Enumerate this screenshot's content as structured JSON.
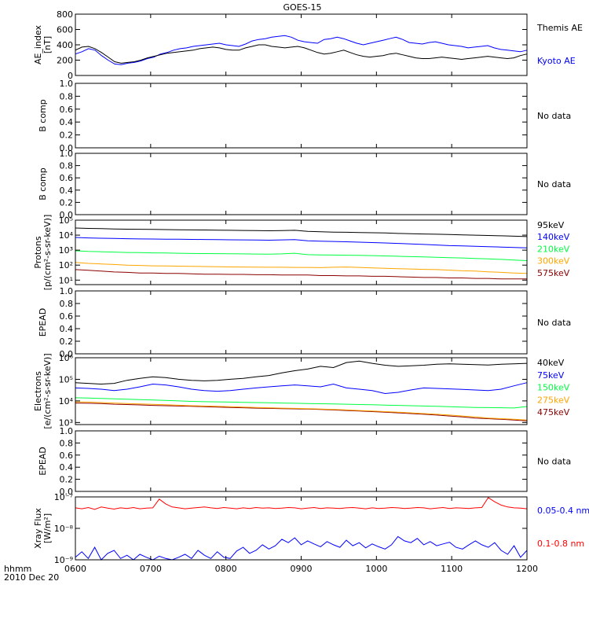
{
  "title": "GOES-15",
  "x_axis": {
    "ticks": [
      "0600",
      "0700",
      "0800",
      "0900",
      "1000",
      "1100",
      "1200"
    ],
    "corner_label_1": "hhmm",
    "corner_label_2": "2010 Dec 20"
  },
  "chart_data": [
    {
      "id": "ae",
      "type": "line",
      "ylabel": [
        "AE_index",
        "[nT]"
      ],
      "ylim": [
        0,
        800
      ],
      "yticks": [
        "0",
        "200",
        "400",
        "600",
        "800"
      ],
      "x_range_hhmm": [
        "0600",
        "1200"
      ],
      "series": [
        {
          "name": "Kyoto AE",
          "color": "#0000ff",
          "values": [
            280,
            310,
            350,
            330,
            260,
            200,
            150,
            140,
            160,
            170,
            190,
            220,
            240,
            280,
            300,
            330,
            350,
            360,
            380,
            390,
            400,
            410,
            420,
            400,
            390,
            380,
            410,
            450,
            470,
            480,
            500,
            510,
            520,
            500,
            460,
            440,
            430,
            420,
            470,
            480,
            500,
            480,
            450,
            420,
            400,
            420,
            440,
            460,
            480,
            500,
            470,
            430,
            420,
            410,
            430,
            440,
            420,
            400,
            390,
            380,
            360,
            370,
            380,
            390,
            360,
            340,
            330,
            320,
            310,
            330
          ]
        },
        {
          "name": "Themis AE",
          "color": "#000000",
          "values": [
            330,
            370,
            380,
            350,
            300,
            240,
            180,
            160,
            170,
            180,
            200,
            230,
            250,
            270,
            290,
            300,
            310,
            320,
            330,
            350,
            360,
            370,
            360,
            340,
            330,
            330,
            360,
            380,
            400,
            400,
            380,
            370,
            360,
            370,
            380,
            360,
            330,
            300,
            280,
            290,
            310,
            330,
            300,
            270,
            250,
            240,
            250,
            260,
            280,
            290,
            270,
            250,
            230,
            220,
            220,
            230,
            240,
            230,
            220,
            210,
            220,
            230,
            240,
            250,
            240,
            230,
            220,
            230,
            260,
            280
          ]
        }
      ]
    },
    {
      "id": "b1",
      "type": "line",
      "ylabel": [
        "B comp"
      ],
      "ylim": [
        0,
        1
      ],
      "yticks": [
        "0.0",
        "0.2",
        "0.4",
        "0.6",
        "0.8",
        "1.0"
      ],
      "status": "No data",
      "series": []
    },
    {
      "id": "b2",
      "type": "line",
      "ylabel": [
        "B comp"
      ],
      "ylim": [
        0,
        1
      ],
      "yticks": [
        "0.0",
        "0.2",
        "0.4",
        "0.6",
        "0.8",
        "1.0"
      ],
      "status": "No data",
      "series": []
    },
    {
      "id": "protons",
      "type": "line",
      "log_scale": true,
      "ylabel": [
        "Protons",
        "[p/(cm²-s-sr-keV)]"
      ],
      "ylim": [
        5,
        100000
      ],
      "yticks": [
        "10¹",
        "10²",
        "10³",
        "10⁴",
        "10⁵"
      ],
      "series": [
        {
          "name": "575keV",
          "color": "#8b0000",
          "values": [
            50,
            45,
            40,
            35,
            33,
            30,
            30,
            28,
            28,
            26,
            25,
            25,
            24,
            24,
            23,
            23,
            22,
            22,
            22,
            20,
            20,
            19,
            19,
            18,
            18,
            17,
            16,
            15,
            15,
            14,
            14,
            13,
            13,
            12,
            12,
            12
          ]
        },
        {
          "name": "300keV",
          "color": "#ffa500",
          "values": [
            150,
            130,
            120,
            110,
            100,
            95,
            90,
            88,
            85,
            82,
            80,
            78,
            76,
            75,
            74,
            72,
            72,
            70,
            70,
            68,
            72,
            75,
            70,
            65,
            62,
            58,
            55,
            52,
            50,
            46,
            42,
            40,
            36,
            33,
            30,
            28
          ]
        },
        {
          "name": "210keV",
          "color": "#00ff40",
          "values": [
            900,
            820,
            780,
            740,
            700,
            680,
            660,
            640,
            620,
            600,
            590,
            580,
            570,
            560,
            550,
            540,
            560,
            620,
            500,
            480,
            470,
            460,
            450,
            430,
            410,
            390,
            370,
            350,
            330,
            310,
            300,
            280,
            260,
            240,
            220,
            200
          ]
        },
        {
          "name": "140keV",
          "color": "#0000ff",
          "values": [
            7000,
            6500,
            6200,
            6000,
            5800,
            5600,
            5500,
            5400,
            5300,
            5200,
            5100,
            5000,
            4900,
            4800,
            4700,
            4600,
            4800,
            5000,
            4200,
            4000,
            3800,
            3600,
            3400,
            3200,
            3000,
            2800,
            2600,
            2400,
            2200,
            2000,
            1900,
            1800,
            1700,
            1600,
            1500,
            1400
          ]
        },
        {
          "name": "95keV",
          "color": "#000000",
          "values": [
            30000,
            28000,
            27000,
            26000,
            25000,
            24500,
            24000,
            23500,
            23000,
            22500,
            22000,
            21500,
            21000,
            20500,
            20000,
            19500,
            20000,
            21000,
            18000,
            17000,
            16000,
            15500,
            15000,
            14500,
            14000,
            13000,
            12500,
            12000,
            11500,
            11000,
            10500,
            10000,
            9500,
            9000,
            8500,
            8000
          ]
        }
      ]
    },
    {
      "id": "epead1",
      "type": "line",
      "ylabel": [
        "EPEAD"
      ],
      "ylim": [
        0,
        1
      ],
      "yticks": [
        "0.0",
        "0.2",
        "0.4",
        "0.6",
        "0.8",
        "1.0"
      ],
      "status": "No data",
      "series": []
    },
    {
      "id": "electrons",
      "type": "line",
      "log_scale": true,
      "ylabel": [
        "Electrons",
        "[e/(cm²-s-sr-keV)]"
      ],
      "ylim": [
        800,
        1000000
      ],
      "yticks": [
        "10³",
        "10⁴",
        "10⁵",
        "10⁶"
      ],
      "series": [
        {
          "name": "475keV",
          "color": "#8b0000",
          "values": [
            8000,
            7800,
            7500,
            7000,
            6800,
            6500,
            6200,
            6000,
            5800,
            5600,
            5400,
            5200,
            5000,
            4800,
            4600,
            4500,
            4400,
            4300,
            4200,
            4000,
            3800,
            3600,
            3400,
            3200,
            3000,
            2800,
            2600,
            2400,
            2200,
            2000,
            1800,
            1600,
            1500,
            1400,
            1300,
            1200
          ]
        },
        {
          "name": "275keV",
          "color": "#ffa500",
          "values": [
            9000,
            8800,
            8400,
            8000,
            7600,
            7200,
            6900,
            6600,
            6300,
            6000,
            5800,
            5600,
            5400,
            5200,
            5000,
            4800,
            4600,
            4500,
            4400,
            4200,
            4000,
            3800,
            3600,
            3400,
            3200,
            3000,
            2800,
            2600,
            2400,
            2200,
            2000,
            1800,
            1600,
            1500,
            1400,
            1300
          ]
        },
        {
          "name": "150keV",
          "color": "#00ff40",
          "values": [
            14000,
            13500,
            13000,
            12500,
            12000,
            11500,
            11000,
            10500,
            10000,
            9500,
            9200,
            9000,
            8800,
            8600,
            8400,
            8200,
            8000,
            7800,
            7600,
            7400,
            7200,
            7000,
            6800,
            6600,
            6400,
            6200,
            6000,
            5800,
            5600,
            5400,
            5200,
            5000,
            4900,
            4800,
            4700,
            5500
          ]
        },
        {
          "name": "75keV",
          "color": "#0000ff",
          "values": [
            40000,
            38000,
            35000,
            30000,
            35000,
            45000,
            60000,
            55000,
            45000,
            35000,
            30000,
            28000,
            30000,
            35000,
            40000,
            45000,
            50000,
            55000,
            50000,
            45000,
            60000,
            40000,
            35000,
            30000,
            22000,
            25000,
            32000,
            40000,
            38000,
            36000,
            34000,
            32000,
            30000,
            35000,
            50000,
            70000
          ]
        },
        {
          "name": "40keV",
          "color": "#000000",
          "values": [
            70000,
            65000,
            60000,
            65000,
            90000,
            110000,
            130000,
            120000,
            100000,
            90000,
            85000,
            90000,
            100000,
            110000,
            130000,
            150000,
            200000,
            250000,
            300000,
            400000,
            350000,
            600000,
            700000,
            550000,
            450000,
            400000,
            420000,
            450000,
            500000,
            520000,
            500000,
            480000,
            460000,
            500000,
            520000,
            550000
          ]
        }
      ]
    },
    {
      "id": "epead2",
      "type": "line",
      "ylabel": [
        "EPEAD"
      ],
      "ylim": [
        0,
        1
      ],
      "yticks": [
        "0.0",
        "0.2",
        "0.4",
        "0.6",
        "0.8",
        "1.0"
      ],
      "status": "No data",
      "series": []
    },
    {
      "id": "xray",
      "type": "line",
      "log_scale": true,
      "ylabel": [
        "Xray Flux",
        "[W/m²]"
      ],
      "ylim": [
        1e-09,
        1e-07
      ],
      "yticks": [
        "10⁻⁹",
        "10⁻⁸",
        "10⁻⁷"
      ],
      "series": [
        {
          "name": "0.1-0.8 nm",
          "color": "#ff0000",
          "values": [
            4.5e-08,
            4.2e-08,
            4.6e-08,
            4e-08,
            4.8e-08,
            4.4e-08,
            4.1e-08,
            4.5e-08,
            4.3e-08,
            4.6e-08,
            4.2e-08,
            4.4e-08,
            4.5e-08,
            8.5e-08,
            6e-08,
            4.8e-08,
            4.5e-08,
            4.2e-08,
            4.4e-08,
            4.6e-08,
            4.8e-08,
            4.5e-08,
            4.3e-08,
            4.6e-08,
            4.4e-08,
            4.2e-08,
            4.5e-08,
            4.3e-08,
            4.6e-08,
            4.4e-08,
            4.5e-08,
            4.3e-08,
            4.4e-08,
            4.6e-08,
            4.5e-08,
            4.2e-08,
            4.4e-08,
            4.6e-08,
            4.3e-08,
            4.5e-08,
            4.4e-08,
            4.3e-08,
            4.5e-08,
            4.6e-08,
            4.4e-08,
            4.2e-08,
            4.5e-08,
            4.3e-08,
            4.4e-08,
            4.6e-08,
            4.5e-08,
            4.3e-08,
            4.4e-08,
            4.6e-08,
            4.5e-08,
            4.2e-08,
            4.4e-08,
            4.6e-08,
            4.3e-08,
            4.5e-08,
            4.4e-08,
            4.3e-08,
            4.5e-08,
            4.6e-08,
            9.5e-08,
            7e-08,
            5.5e-08,
            4.8e-08,
            4.5e-08,
            4.4e-08,
            4.2e-08
          ]
        },
        {
          "name": "0.05-0.4 nm",
          "color": "#0000ff",
          "values": [
            1.2e-09,
            1.8e-09,
            1.1e-09,
            2.5e-09,
            1e-09,
            1.6e-09,
            2e-09,
            1.1e-09,
            1.4e-09,
            1e-09,
            1.5e-09,
            1.2e-09,
            1e-09,
            1.3e-09,
            1.1e-09,
            1e-09,
            1.2e-09,
            1.5e-09,
            1.1e-09,
            2e-09,
            1.4e-09,
            1.1e-09,
            1.8e-09,
            1.2e-09,
            1.1e-09,
            1.9e-09,
            2.5e-09,
            1.6e-09,
            2e-09,
            3e-09,
            2.2e-09,
            2.8e-09,
            4.5e-09,
            3.5e-09,
            5e-09,
            3e-09,
            4e-09,
            3.2e-09,
            2.6e-09,
            3.8e-09,
            3e-09,
            2.5e-09,
            4.2e-09,
            2.8e-09,
            3.5e-09,
            2.4e-09,
            3.2e-09,
            2.6e-09,
            2.2e-09,
            3e-09,
            5.5e-09,
            4e-09,
            3.5e-09,
            4.8e-09,
            3e-09,
            3.8e-09,
            2.8e-09,
            3.2e-09,
            3.6e-09,
            2.5e-09,
            2.2e-09,
            3e-09,
            4e-09,
            3e-09,
            2.5e-09,
            3.5e-09,
            2e-09,
            1.5e-09,
            2.8e-09,
            1.2e-09,
            2e-09
          ]
        }
      ]
    }
  ]
}
